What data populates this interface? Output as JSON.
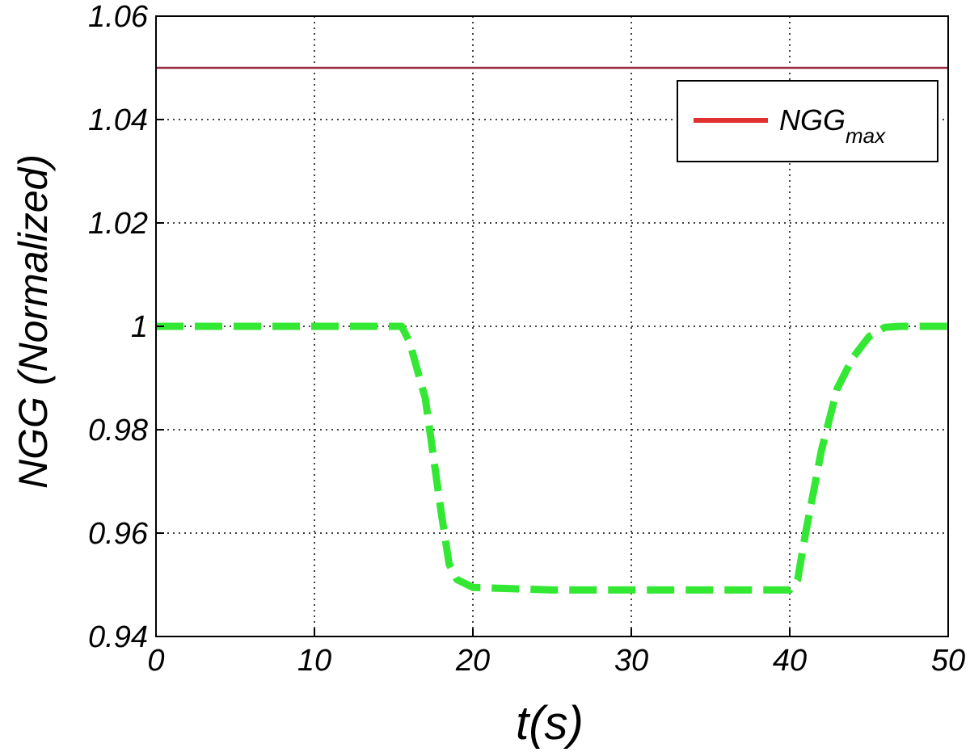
{
  "chart_data": {
    "type": "line",
    "xlabel": "t(s)",
    "ylabel": "NGG  (Normalized)",
    "xlim": [
      0,
      50
    ],
    "ylim": [
      0.94,
      1.06
    ],
    "x_ticks": [
      "0",
      "10",
      "20",
      "30",
      "40",
      "50"
    ],
    "y_ticks": [
      "0.94",
      "0.96",
      "0.98",
      "1",
      "1.02",
      "1.04",
      "1.06"
    ],
    "grid": true,
    "legend": {
      "placement": "top-right",
      "entry_main": "NGG",
      "entry_sub": "max"
    },
    "series": [
      {
        "name": "NGGmax",
        "style": "solid",
        "color": "#9b2a45",
        "legend_color": "#e03030",
        "x": [
          0,
          50
        ],
        "y": [
          1.05,
          1.05
        ]
      },
      {
        "style": "dashed",
        "color": "#33e833",
        "x": [
          0,
          15,
          15.5,
          16,
          17,
          18,
          18.5,
          19,
          20,
          25,
          30,
          35,
          40,
          40.5,
          41,
          42,
          43,
          44,
          45,
          46,
          47,
          50
        ],
        "y": [
          1.0,
          1.0,
          1.0,
          0.997,
          0.986,
          0.964,
          0.954,
          0.951,
          0.9495,
          0.949,
          0.949,
          0.949,
          0.949,
          0.951,
          0.96,
          0.976,
          0.988,
          0.994,
          0.998,
          0.9998,
          1.0,
          1.0
        ]
      }
    ]
  }
}
